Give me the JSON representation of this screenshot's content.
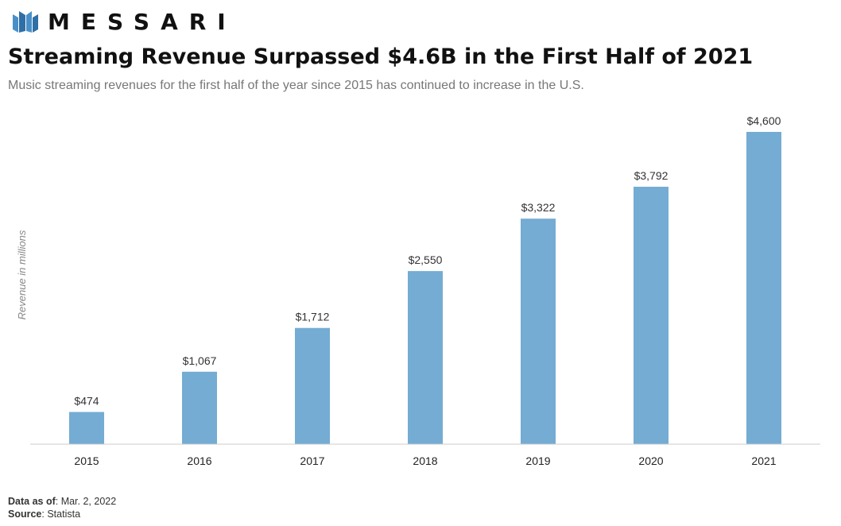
{
  "brand": {
    "name": "MESSARI",
    "accent_color": "#4a90c8"
  },
  "header": {
    "title": "Streaming Revenue Surpassed $4.6B in the First Half of 2021",
    "subtitle": "Music streaming revenues for the first half of the year since 2015 has continued to increase in the U.S."
  },
  "footer": {
    "data_as_of_label": "Data as of",
    "data_as_of_value": ": Mar. 2, 2022",
    "source_label": "Source",
    "source_value": ": Statista"
  },
  "chart_data": {
    "type": "bar",
    "title": "Streaming Revenue Surpassed $4.6B in the First Half of 2021",
    "xlabel": "",
    "ylabel": "Revenue in millions",
    "categories": [
      "2015",
      "2016",
      "2017",
      "2018",
      "2019",
      "2020",
      "2021"
    ],
    "values": [
      474,
      1067,
      1712,
      2550,
      3322,
      3792,
      4600
    ],
    "data_labels": [
      "$474",
      "$1,067",
      "$1,712",
      "$2,550",
      "$3,322",
      "$3,792",
      "$4,600"
    ],
    "ylim": [
      0,
      4600
    ],
    "grid": false,
    "bar_color": "#74acd3",
    "axis_color": "#cccccc"
  }
}
